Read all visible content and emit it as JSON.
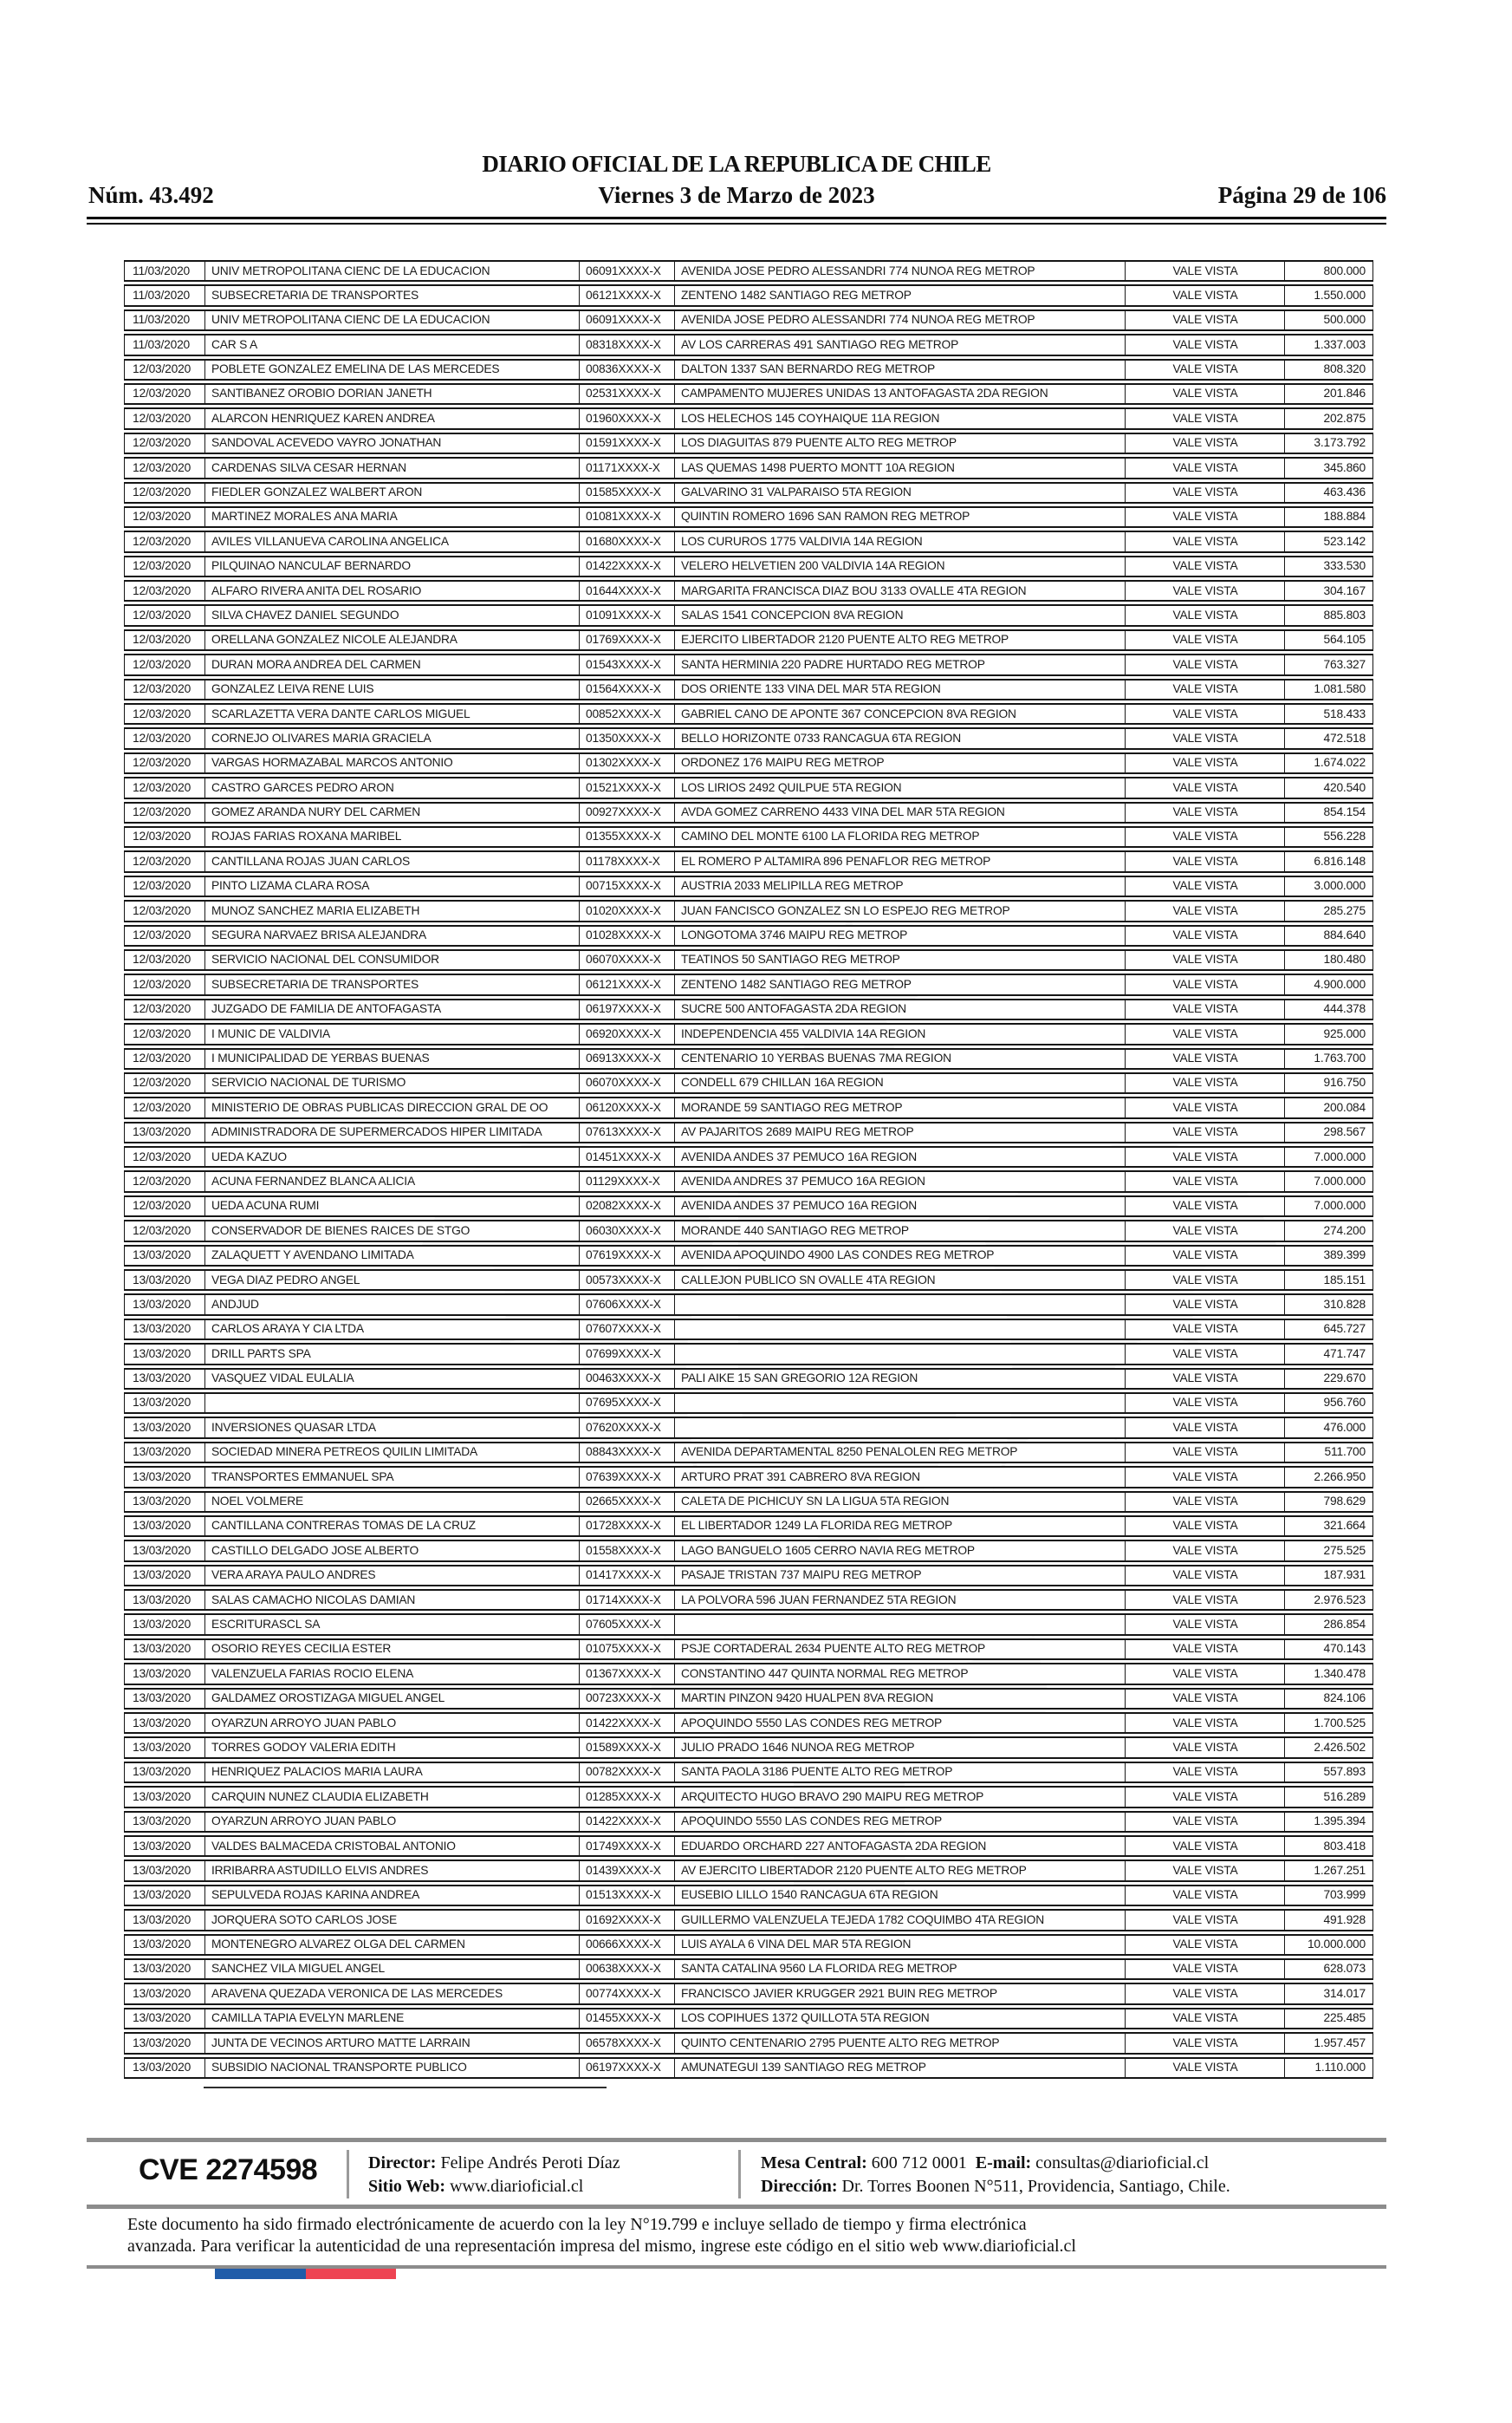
{
  "header": {
    "issue_number": "Núm. 43.492",
    "title": "DIARIO OFICIAL DE LA REPUBLICA DE CHILE",
    "date_line": "Viernes 3 de Marzo de 2023",
    "page_indicator": "Página 29 de 106"
  },
  "table": {
    "rows": [
      [
        "11/03/2020",
        "UNIV METROPOLITANA CIENC DE LA EDUCACION",
        "06091XXXX-X",
        "AVENIDA JOSE PEDRO ALESSANDRI 774 NUNOA REG METROP",
        "VALE VISTA",
        "800.000"
      ],
      [
        "11/03/2020",
        "SUBSECRETARIA DE TRANSPORTES",
        "06121XXXX-X",
        "ZENTENO 1482 SANTIAGO REG METROP",
        "VALE VISTA",
        "1.550.000"
      ],
      [
        "11/03/2020",
        "UNIV METROPOLITANA CIENC DE LA EDUCACION",
        "06091XXXX-X",
        "AVENIDA JOSE PEDRO ALESSANDRI 774 NUNOA REG METROP",
        "VALE VISTA",
        "500.000"
      ],
      [
        "11/03/2020",
        "CAR S A",
        "08318XXXX-X",
        "AV LOS CARRERAS 491 SANTIAGO REG METROP",
        "VALE VISTA",
        "1.337.003"
      ],
      [
        "12/03/2020",
        "POBLETE GONZALEZ EMELINA DE LAS MERCEDES",
        "00836XXXX-X",
        "DALTON 1337 SAN BERNARDO REG METROP",
        "VALE VISTA",
        "808.320"
      ],
      [
        "12/03/2020",
        "SANTIBANEZ OROBIO DORIAN JANETH",
        "02531XXXX-X",
        "CAMPAMENTO MUJERES UNIDAS 13 ANTOFAGASTA 2DA REGION",
        "VALE VISTA",
        "201.846"
      ],
      [
        "12/03/2020",
        "ALARCON HENRIQUEZ KAREN ANDREA",
        "01960XXXX-X",
        "LOS HELECHOS 145 COYHAIQUE 11A REGION",
        "VALE VISTA",
        "202.875"
      ],
      [
        "12/03/2020",
        "SANDOVAL ACEVEDO VAYRO JONATHAN",
        "01591XXXX-X",
        "LOS DIAGUITAS 879 PUENTE ALTO REG METROP",
        "VALE VISTA",
        "3.173.792"
      ],
      [
        "12/03/2020",
        "CARDENAS SILVA CESAR HERNAN",
        "01171XXXX-X",
        "LAS QUEMAS 1498 PUERTO MONTT 10A REGION",
        "VALE VISTA",
        "345.860"
      ],
      [
        "12/03/2020",
        "FIEDLER GONZALEZ WALBERT ARON",
        "01585XXXX-X",
        "GALVARINO 31 VALPARAISO 5TA REGION",
        "VALE VISTA",
        "463.436"
      ],
      [
        "12/03/2020",
        "MARTINEZ MORALES ANA MARIA",
        "01081XXXX-X",
        "QUINTIN ROMERO 1696 SAN RAMON REG METROP",
        "VALE VISTA",
        "188.884"
      ],
      [
        "12/03/2020",
        "AVILES VILLANUEVA CAROLINA ANGELICA",
        "01680XXXX-X",
        "LOS CURUROS 1775 VALDIVIA 14A REGION",
        "VALE VISTA",
        "523.142"
      ],
      [
        "12/03/2020",
        "PILQUINAO NANCULAF BERNARDO",
        "01422XXXX-X",
        "VELERO HELVETIEN 200 VALDIVIA 14A REGION",
        "VALE VISTA",
        "333.530"
      ],
      [
        "12/03/2020",
        "ALFARO RIVERA ANITA DEL ROSARIO",
        "01644XXXX-X",
        "MARGARITA FRANCISCA DIAZ BOU 3133 OVALLE 4TA REGION",
        "VALE VISTA",
        "304.167"
      ],
      [
        "12/03/2020",
        "SILVA CHAVEZ DANIEL SEGUNDO",
        "01091XXXX-X",
        "SALAS 1541 CONCEPCION 8VA REGION",
        "VALE VISTA",
        "885.803"
      ],
      [
        "12/03/2020",
        "ORELLANA GONZALEZ NICOLE ALEJANDRA",
        "01769XXXX-X",
        "EJERCITO LIBERTADOR 2120 PUENTE ALTO REG METROP",
        "VALE VISTA",
        "564.105"
      ],
      [
        "12/03/2020",
        "DURAN MORA ANDREA DEL CARMEN",
        "01543XXXX-X",
        "SANTA HERMINIA 220 PADRE HURTADO REG METROP",
        "VALE VISTA",
        "763.327"
      ],
      [
        "12/03/2020",
        "GONZALEZ LEIVA RENE LUIS",
        "01564XXXX-X",
        "DOS ORIENTE 133 VINA DEL MAR 5TA REGION",
        "VALE VISTA",
        "1.081.580"
      ],
      [
        "12/03/2020",
        "SCARLAZETTA VERA DANTE CARLOS MIGUEL",
        "00852XXXX-X",
        "GABRIEL CANO DE APONTE 367 CONCEPCION 8VA REGION",
        "VALE VISTA",
        "518.433"
      ],
      [
        "12/03/2020",
        "CORNEJO OLIVARES MARIA GRACIELA",
        "01350XXXX-X",
        "BELLO HORIZONTE 0733 RANCAGUA 6TA REGION",
        "VALE VISTA",
        "472.518"
      ],
      [
        "12/03/2020",
        "VARGAS HORMAZABAL MARCOS ANTONIO",
        "01302XXXX-X",
        "ORDONEZ 176 MAIPU REG METROP",
        "VALE VISTA",
        "1.674.022"
      ],
      [
        "12/03/2020",
        "CASTRO GARCES PEDRO ARON",
        "01521XXXX-X",
        "LOS LIRIOS 2492 QUILPUE 5TA REGION",
        "VALE VISTA",
        "420.540"
      ],
      [
        "12/03/2020",
        "GOMEZ ARANDA NURY DEL CARMEN",
        "00927XXXX-X",
        "AVDA GOMEZ CARRENO 4433 VINA DEL MAR 5TA REGION",
        "VALE VISTA",
        "854.154"
      ],
      [
        "12/03/2020",
        "ROJAS FARIAS ROXANA MARIBEL",
        "01355XXXX-X",
        "CAMINO DEL MONTE 6100 LA FLORIDA REG METROP",
        "VALE VISTA",
        "556.228"
      ],
      [
        "12/03/2020",
        "CANTILLANA ROJAS JUAN CARLOS",
        "01178XXXX-X",
        "EL ROMERO P ALTAMIRA 896 PENAFLOR REG METROP",
        "VALE VISTA",
        "6.816.148"
      ],
      [
        "12/03/2020",
        "PINTO LIZAMA CLARA ROSA",
        "00715XXXX-X",
        "AUSTRIA 2033 MELIPILLA REG METROP",
        "VALE VISTA",
        "3.000.000"
      ],
      [
        "12/03/2020",
        "MUNOZ SANCHEZ MARIA ELIZABETH",
        "01020XXXX-X",
        "JUAN FANCISCO GONZALEZ SN LO ESPEJO REG METROP",
        "VALE VISTA",
        "285.275"
      ],
      [
        "12/03/2020",
        "SEGURA NARVAEZ BRISA ALEJANDRA",
        "01028XXXX-X",
        "LONGOTOMA 3746 MAIPU REG METROP",
        "VALE VISTA",
        "884.640"
      ],
      [
        "12/03/2020",
        "SERVICIO NACIONAL DEL CONSUMIDOR",
        "06070XXXX-X",
        "TEATINOS 50 SANTIAGO REG METROP",
        "VALE VISTA",
        "180.480"
      ],
      [
        "12/03/2020",
        "SUBSECRETARIA DE TRANSPORTES",
        "06121XXXX-X",
        "ZENTENO 1482 SANTIAGO REG METROP",
        "VALE VISTA",
        "4.900.000"
      ],
      [
        "12/03/2020",
        "JUZGADO DE FAMILIA DE ANTOFAGASTA",
        "06197XXXX-X",
        "SUCRE 500 ANTOFAGASTA 2DA REGION",
        "VALE VISTA",
        "444.378"
      ],
      [
        "12/03/2020",
        "I MUNIC DE VALDIVIA",
        "06920XXXX-X",
        "INDEPENDENCIA 455 VALDIVIA 14A REGION",
        "VALE VISTA",
        "925.000"
      ],
      [
        "12/03/2020",
        "I MUNICIPALIDAD DE YERBAS BUENAS",
        "06913XXXX-X",
        "CENTENARIO 10 YERBAS BUENAS 7MA REGION",
        "VALE VISTA",
        "1.763.700"
      ],
      [
        "12/03/2020",
        "SERVICIO NACIONAL DE TURISMO",
        "06070XXXX-X",
        "CONDELL 679 CHILLAN 16A REGION",
        "VALE VISTA",
        "916.750"
      ],
      [
        "12/03/2020",
        "MINISTERIO DE OBRAS PUBLICAS DIRECCION GRAL DE OO",
        "06120XXXX-X",
        "MORANDE 59 SANTIAGO REG METROP",
        "VALE VISTA",
        "200.084"
      ],
      [
        "13/03/2020",
        "ADMINISTRADORA DE SUPERMERCADOS HIPER LIMITADA",
        "07613XXXX-X",
        "AV PAJARITOS 2689 MAIPU REG METROP",
        "VALE VISTA",
        "298.567"
      ],
      [
        "12/03/2020",
        "UEDA KAZUO",
        "01451XXXX-X",
        "AVENIDA ANDES 37 PEMUCO 16A REGION",
        "VALE VISTA",
        "7.000.000"
      ],
      [
        "12/03/2020",
        "ACUNA FERNANDEZ BLANCA ALICIA",
        "01129XXXX-X",
        "AVENIDA ANDRES 37 PEMUCO 16A REGION",
        "VALE VISTA",
        "7.000.000"
      ],
      [
        "12/03/2020",
        "UEDA ACUNA RUMI",
        "02082XXXX-X",
        "AVENIDA ANDES 37 PEMUCO 16A REGION",
        "VALE VISTA",
        "7.000.000"
      ],
      [
        "12/03/2020",
        "CONSERVADOR DE BIENES RAICES DE STGO",
        "06030XXXX-X",
        "MORANDE 440 SANTIAGO REG METROP",
        "VALE VISTA",
        "274.200"
      ],
      [
        "13/03/2020",
        "ZALAQUETT Y AVENDANO LIMITADA",
        "07619XXXX-X",
        "AVENIDA APOQUINDO 4900 LAS CONDES REG METROP",
        "VALE VISTA",
        "389.399"
      ],
      [
        "13/03/2020",
        "VEGA DIAZ PEDRO ANGEL",
        "00573XXXX-X",
        "CALLEJON PUBLICO SN OVALLE 4TA REGION",
        "VALE VISTA",
        "185.151"
      ],
      [
        "13/03/2020",
        "ANDJUD",
        "07606XXXX-X",
        "",
        "VALE VISTA",
        "310.828"
      ],
      [
        "13/03/2020",
        "CARLOS ARAYA Y CIA LTDA",
        "07607XXXX-X",
        "",
        "VALE VISTA",
        "645.727"
      ],
      [
        "13/03/2020",
        "DRILL PARTS SPA",
        "07699XXXX-X",
        "",
        "VALE VISTA",
        "471.747"
      ],
      [
        "13/03/2020",
        "VASQUEZ VIDAL EULALIA",
        "00463XXXX-X",
        "PALI AIKE 15 SAN GREGORIO 12A REGION",
        "VALE VISTA",
        "229.670"
      ],
      [
        "13/03/2020",
        "",
        "07695XXXX-X",
        "",
        "VALE VISTA",
        "956.760"
      ],
      [
        "13/03/2020",
        "INVERSIONES QUASAR LTDA",
        "07620XXXX-X",
        "",
        "VALE VISTA",
        "476.000"
      ],
      [
        "13/03/2020",
        "SOCIEDAD MINERA PETREOS QUILIN LIMITADA",
        "08843XXXX-X",
        "AVENIDA DEPARTAMENTAL 8250 PENALOLEN REG METROP",
        "VALE VISTA",
        "511.700"
      ],
      [
        "13/03/2020",
        "TRANSPORTES EMMANUEL SPA",
        "07639XXXX-X",
        "ARTURO PRAT 391 CABRERO 8VA REGION",
        "VALE VISTA",
        "2.266.950"
      ],
      [
        "13/03/2020",
        "NOEL VOLMERE",
        "02665XXXX-X",
        "CALETA DE PICHICUY SN LA LIGUA 5TA REGION",
        "VALE VISTA",
        "798.629"
      ],
      [
        "13/03/2020",
        "CANTILLANA CONTRERAS TOMAS DE LA CRUZ",
        "01728XXXX-X",
        "EL LIBERTADOR 1249 LA FLORIDA REG METROP",
        "VALE VISTA",
        "321.664"
      ],
      [
        "13/03/2020",
        "CASTILLO DELGADO JOSE ALBERTO",
        "01558XXXX-X",
        "LAGO BANGUELO 1605 CERRO NAVIA REG METROP",
        "VALE VISTA",
        "275.525"
      ],
      [
        "13/03/2020",
        "VERA ARAYA PAULO ANDRES",
        "01417XXXX-X",
        "PASAJE TRISTAN 737 MAIPU REG METROP",
        "VALE VISTA",
        "187.931"
      ],
      [
        "13/03/2020",
        "SALAS CAMACHO NICOLAS DAMIAN",
        "01714XXXX-X",
        "LA POLVORA 596 JUAN FERNANDEZ 5TA REGION",
        "VALE VISTA",
        "2.976.523"
      ],
      [
        "13/03/2020",
        "ESCRITURASCL SA",
        "07605XXXX-X",
        "",
        "VALE VISTA",
        "286.854"
      ],
      [
        "13/03/2020",
        "OSORIO REYES CECILIA ESTER",
        "01075XXXX-X",
        "PSJE CORTADERAL 2634 PUENTE ALTO REG METROP",
        "VALE VISTA",
        "470.143"
      ],
      [
        "13/03/2020",
        "VALENZUELA FARIAS ROCIO ELENA",
        "01367XXXX-X",
        "CONSTANTINO 447 QUINTA NORMAL REG METROP",
        "VALE VISTA",
        "1.340.478"
      ],
      [
        "13/03/2020",
        "GALDAMEZ OROSTIZAGA MIGUEL ANGEL",
        "00723XXXX-X",
        "MARTIN PINZON 9420 HUALPEN 8VA REGION",
        "VALE VISTA",
        "824.106"
      ],
      [
        "13/03/2020",
        "OYARZUN ARROYO JUAN PABLO",
        "01422XXXX-X",
        "APOQUINDO 5550 LAS CONDES REG METROP",
        "VALE VISTA",
        "1.700.525"
      ],
      [
        "13/03/2020",
        "TORRES GODOY VALERIA EDITH",
        "01589XXXX-X",
        "JULIO PRADO 1646 NUNOA REG METROP",
        "VALE VISTA",
        "2.426.502"
      ],
      [
        "13/03/2020",
        "HENRIQUEZ PALACIOS MARIA LAURA",
        "00782XXXX-X",
        "SANTA PAOLA 3186 PUENTE ALTO REG METROP",
        "VALE VISTA",
        "557.893"
      ],
      [
        "13/03/2020",
        "CARQUIN NUNEZ CLAUDIA ELIZABETH",
        "01285XXXX-X",
        "ARQUITECTO HUGO BRAVO 290 MAIPU REG METROP",
        "VALE VISTA",
        "516.289"
      ],
      [
        "13/03/2020",
        "OYARZUN ARROYO JUAN PABLO",
        "01422XXXX-X",
        "APOQUINDO 5550 LAS CONDES REG METROP",
        "VALE VISTA",
        "1.395.394"
      ],
      [
        "13/03/2020",
        "VALDES BALMACEDA CRISTOBAL ANTONIO",
        "01749XXXX-X",
        "EDUARDO ORCHARD 227 ANTOFAGASTA 2DA REGION",
        "VALE VISTA",
        "803.418"
      ],
      [
        "13/03/2020",
        "IRRIBARRA ASTUDILLO ELVIS ANDRES",
        "01439XXXX-X",
        "AV EJERCITO LIBERTADOR 2120 PUENTE ALTO REG METROP",
        "VALE VISTA",
        "1.267.251"
      ],
      [
        "13/03/2020",
        "SEPULVEDA ROJAS KARINA ANDREA",
        "01513XXXX-X",
        "EUSEBIO LILLO 1540 RANCAGUA 6TA REGION",
        "VALE VISTA",
        "703.999"
      ],
      [
        "13/03/2020",
        "JORQUERA SOTO CARLOS JOSE",
        "01692XXXX-X",
        "GUILLERMO VALENZUELA TEJEDA 1782 COQUIMBO 4TA REGION",
        "VALE VISTA",
        "491.928"
      ],
      [
        "13/03/2020",
        "MONTENEGRO ALVAREZ OLGA DEL CARMEN",
        "00666XXXX-X",
        "LUIS AYALA 6 VINA DEL MAR 5TA REGION",
        "VALE VISTA",
        "10.000.000"
      ],
      [
        "13/03/2020",
        "SANCHEZ VILA MIGUEL ANGEL",
        "00638XXXX-X",
        "SANTA CATALINA 9560 LA FLORIDA REG METROP",
        "VALE VISTA",
        "628.073"
      ],
      [
        "13/03/2020",
        "ARAVENA QUEZADA VERONICA DE LAS MERCEDES",
        "00774XXXX-X",
        "FRANCISCO JAVIER KRUGGER 2921 BUIN REG METROP",
        "VALE VISTA",
        "314.017"
      ],
      [
        "13/03/2020",
        "CAMILLA TAPIA EVELYN MARLENE",
        "01455XXXX-X",
        "LOS COPIHUES 1372 QUILLOTA 5TA REGION",
        "VALE VISTA",
        "225.485"
      ],
      [
        "13/03/2020",
        "JUNTA DE VECINOS ARTURO MATTE LARRAIN",
        "06578XXXX-X",
        "QUINTO CENTENARIO 2795 PUENTE ALTO REG METROP",
        "VALE VISTA",
        "1.957.457"
      ],
      [
        "13/03/2020",
        "SUBSIDIO NACIONAL TRANSPORTE PUBLICO",
        "06197XXXX-X",
        "AMUNATEGUI 139 SANTIAGO REG METROP",
        "VALE VISTA",
        "1.110.000"
      ]
    ]
  },
  "footer": {
    "cve": "CVE 2274598",
    "director_label": "Director:",
    "director": "Felipe Andrés Peroti Díaz",
    "sitio_label": "Sitio Web:",
    "sitio": "www.diarioficial.cl",
    "mesa_label": "Mesa Central:",
    "mesa": "600 712 0001",
    "email_label": "E-mail:",
    "email": "consultas@diarioficial.cl",
    "direccion_label": "Dirección:",
    "direccion": "Dr. Torres Boonen N°511, Providencia, Santiago, Chile.",
    "legal_line1": "Este documento ha sido firmado electrónicamente de acuerdo con la ley N°19.799 e incluye sellado de tiempo y firma electrónica",
    "legal_line2": "avanzada. Para verificar la autenticidad de una representación impresa del mismo, ingrese este código en el sitio web www.diarioficial.cl"
  },
  "colors": {
    "flag_blue": "#205CA9",
    "flag_red": "#EE4352",
    "rule_gray": "#8C8C8C"
  }
}
